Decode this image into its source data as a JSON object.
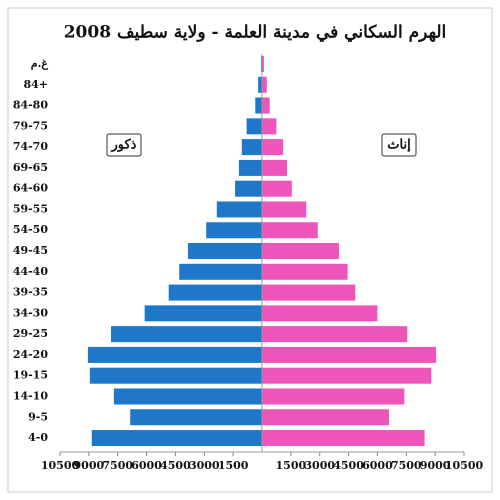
{
  "chart_data": {
    "type": "pyramid",
    "title": "الهرم السكاني في مدينة العلمة - ولاية سطيف 2008",
    "categories": [
      "غ.م",
      "84+",
      "84-80",
      "79-75",
      "74-70",
      "69-65",
      "64-60",
      "59-55",
      "54-50",
      "49-45",
      "44-40",
      "39-35",
      "34-30",
      "29-25",
      "24-20",
      "19-15",
      "14-10",
      "9-5",
      "4-0"
    ],
    "series": [
      {
        "name": "ذكور",
        "color": "#1f77c9",
        "values": [
          -50,
          -200,
          -350,
          -800,
          -1050,
          -1200,
          -1400,
          -2350,
          -2900,
          -3850,
          -4300,
          -4850,
          -6100,
          -7850,
          -9050,
          -8950,
          -7700,
          -6850,
          -8850
        ]
      },
      {
        "name": "إناث",
        "color": "#ee55bb",
        "values": [
          100,
          250,
          400,
          750,
          1100,
          1300,
          1550,
          2300,
          2900,
          4000,
          4450,
          4850,
          6000,
          7550,
          9050,
          8800,
          7400,
          6600,
          8450
        ]
      }
    ],
    "xlim": [
      -10500,
      10500
    ],
    "xticks": [
      {
        "value": -10500,
        "label": "10500"
      },
      {
        "value": -9000,
        "label": "9000"
      },
      {
        "value": -7500,
        "label": "7500"
      },
      {
        "value": -6000,
        "label": "6000"
      },
      {
        "value": -4500,
        "label": "4500"
      },
      {
        "value": -3000,
        "label": "3000"
      },
      {
        "value": -1500,
        "label": "1500"
      },
      1500,
      3000,
      4500,
      6000,
      7500,
      9000,
      10500
    ]
  }
}
